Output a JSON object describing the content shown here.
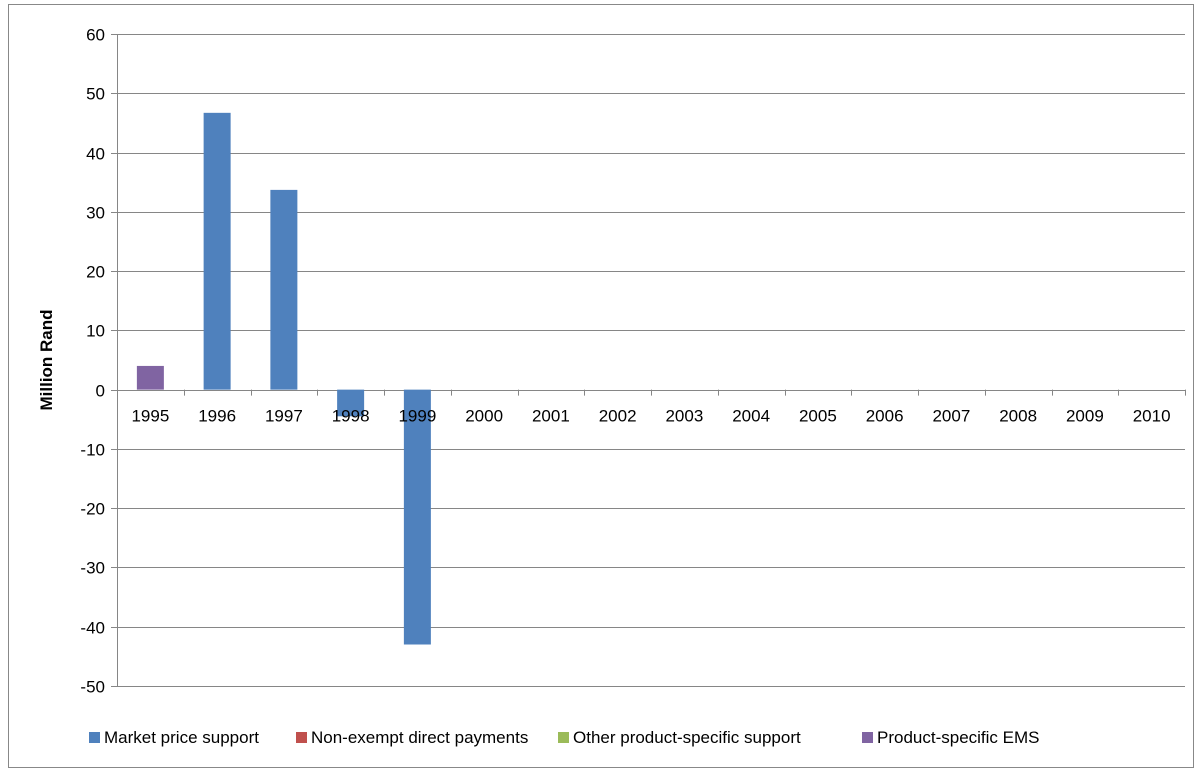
{
  "chart_data": {
    "type": "bar",
    "title": "",
    "xlabel": "",
    "ylabel": "Million Rand",
    "ylim": [
      -50,
      60
    ],
    "yticks": [
      60,
      50,
      40,
      30,
      20,
      10,
      0,
      -10,
      -20,
      -30,
      -40,
      -50
    ],
    "grid": true,
    "legend_position": "bottom",
    "categories": [
      "1995",
      "1996",
      "1997",
      "1998",
      "1999",
      "2000",
      "2001",
      "2002",
      "2003",
      "2004",
      "2005",
      "2006",
      "2007",
      "2008",
      "2009",
      "2010"
    ],
    "series": [
      {
        "name": "Market price support",
        "color": "#4f81bd",
        "values": [
          0,
          46.7,
          33.7,
          -4.5,
          -43.0,
          0,
          0,
          0,
          0,
          0,
          0,
          0,
          0,
          0,
          0,
          0
        ]
      },
      {
        "name": "Non-exempt direct payments",
        "color": "#c0504d",
        "values": [
          0,
          0,
          0,
          0,
          0,
          0,
          0,
          0,
          0,
          0,
          0,
          0,
          0,
          0,
          0,
          0
        ]
      },
      {
        "name": "Other product-specific support",
        "color": "#9bbb59",
        "values": [
          0,
          0,
          0,
          0,
          0,
          0,
          0,
          0,
          0,
          0,
          0,
          0,
          0,
          0,
          0,
          0
        ]
      },
      {
        "name": "Product-specific EMS",
        "color": "#8064a2",
        "values": [
          4.0,
          0,
          0,
          0,
          0,
          0,
          0,
          0,
          0,
          0,
          0,
          0,
          0,
          0,
          0,
          0
        ]
      }
    ]
  }
}
